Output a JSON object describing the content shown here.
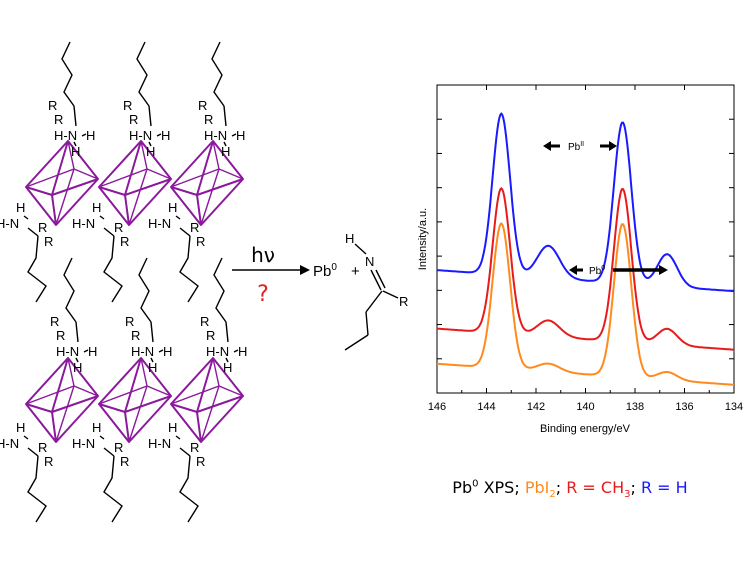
{
  "left_structure": {
    "atoms": {
      "R": "R",
      "H": "H",
      "N": "N",
      "H_N": "H-N"
    }
  },
  "reaction": {
    "condition_above": "hν",
    "condition_below": "?",
    "product_metal": "Pb",
    "product_metal_superscript": "0",
    "plus": "+",
    "imine_H": "H",
    "imine_N": "N",
    "imine_R": "R",
    "colors": {
      "question": "#e02020"
    }
  },
  "chart_data": {
    "type": "line",
    "xlabel": "Binding energy/eV",
    "ylabel": "Intensity/a.u.",
    "xlim": [
      146,
      134
    ],
    "x_ticks": [
      146,
      144,
      142,
      140,
      138,
      136,
      134
    ],
    "series": [
      {
        "color": "#1a1aff",
        "peaks": [
          [
            143.4,
            1.0
          ],
          [
            138.5,
            1.0
          ],
          [
            141.5,
            0.2
          ],
          [
            136.7,
            0.2
          ]
        ],
        "offset": 0.42
      },
      {
        "color": "#e61c1c",
        "peaks": [
          [
            143.4,
            0.9
          ],
          [
            138.5,
            0.95
          ],
          [
            141.5,
            0.1
          ],
          [
            136.7,
            0.1
          ]
        ],
        "offset": 0.22
      },
      {
        "color": "#ff8a1e",
        "peaks": [
          [
            143.4,
            0.9
          ],
          [
            138.5,
            0.95
          ],
          [
            141.5,
            0.05
          ],
          [
            136.7,
            0.05
          ]
        ],
        "offset": 0.1
      }
    ],
    "annotations": {
      "pb2": {
        "label": "Pb",
        "sup": "II"
      },
      "pb0": {
        "label": "Pb",
        "sup": "0"
      }
    }
  },
  "legend_caption": {
    "pb0": "Pb",
    "pb0_sup": "0",
    "xps": " XPS; ",
    "pbi2_main": "PbI",
    "pbi2_sub": "2",
    "sep1": "; ",
    "r_ch3_main": "R = CH",
    "r_ch3_sub": "3",
    "sep2": "; ",
    "r_h": "R = H",
    "colors": {
      "black": "#000000",
      "orange": "#ff8a1e",
      "red": "#e61c1c",
      "blue": "#1a1aff"
    }
  }
}
